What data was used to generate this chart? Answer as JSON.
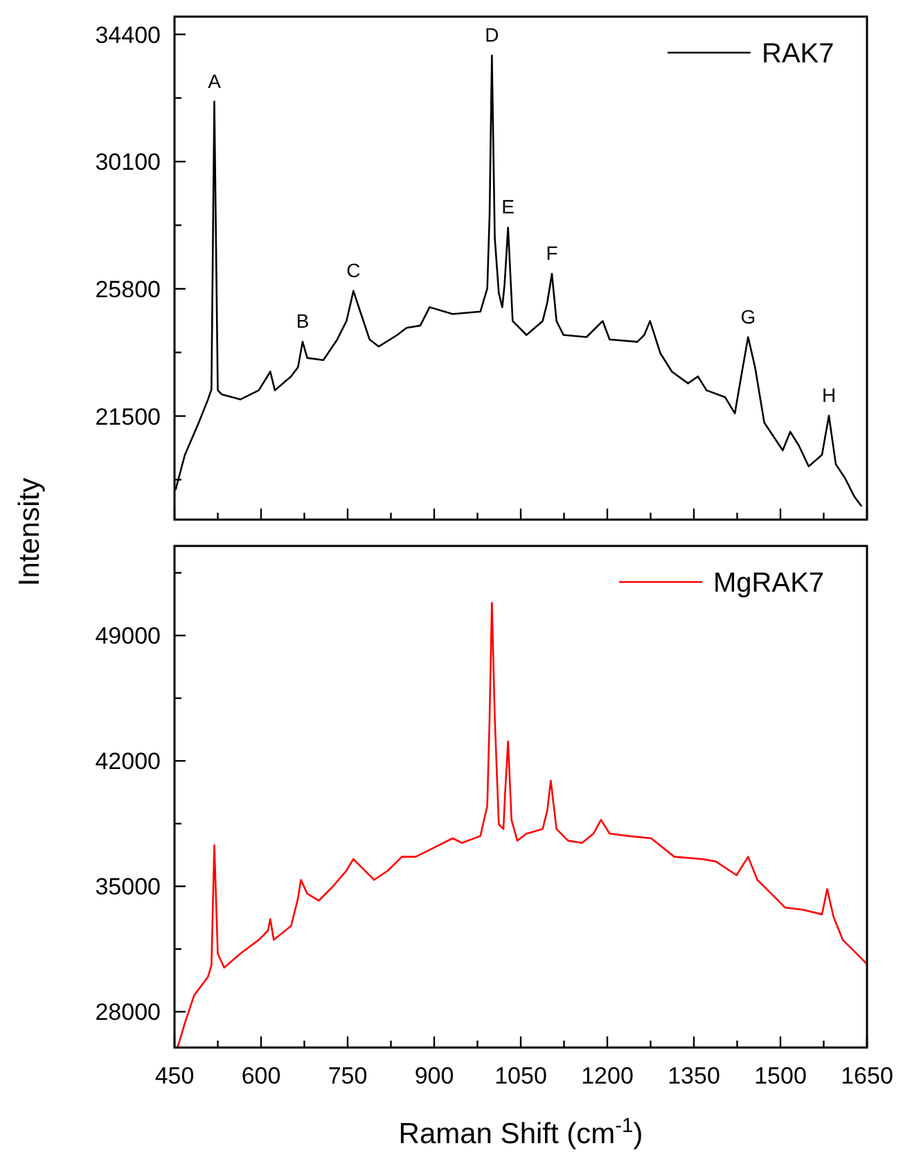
{
  "chart_data": [
    {
      "type": "line",
      "ylabel": "Intensity",
      "legend": "top right",
      "tick_labels": "y",
      "xlim": [
        450,
        1650
      ],
      "xticks": [
        450,
        {
          "value": 525,
          "label": null
        },
        600,
        {
          "value": 675,
          "label": null
        },
        750,
        {
          "value": 825,
          "label": null
        },
        900,
        {
          "value": 975,
          "label": null
        },
        1050,
        {
          "value": 1125,
          "label": null
        },
        1200,
        {
          "value": 1275,
          "label": null
        },
        1350,
        {
          "value": 1425,
          "label": null
        },
        1500,
        {
          "value": 1575,
          "label": null
        },
        1650
      ],
      "ylim": [
        18000,
        35000
      ],
      "yticks": [
        {
          "value": 19350,
          "label": null
        },
        21500,
        {
          "value": 23650,
          "label": null
        },
        25800,
        {
          "value": 27950,
          "label": null
        },
        30100,
        {
          "value": 32250,
          "label": null
        },
        34400
      ],
      "annotations": [
        {
          "text": "A",
          "x": 519,
          "y": 32130
        },
        {
          "text": "B",
          "x": 672,
          "y": 24010
        },
        {
          "text": "C",
          "x": 760,
          "y": 25730
        },
        {
          "text": "D",
          "x": 1000,
          "y": 33690
        },
        {
          "text": "E",
          "x": 1028,
          "y": 27870
        },
        {
          "text": "F",
          "x": 1104,
          "y": 26305
        },
        {
          "text": "G",
          "x": 1444,
          "y": 24170
        },
        {
          "text": "H",
          "x": 1584,
          "y": 21510
        }
      ],
      "series": [
        {
          "name": "RAK7",
          "color": "#000000",
          "x": [
            452,
            468,
            492,
            508,
            514,
            519,
            525,
            532,
            564,
            596,
            616,
            624,
            652,
            664,
            672,
            680,
            708,
            732,
            748,
            760,
            772,
            788,
            804,
            836,
            852,
            876,
            892,
            932,
            980,
            992,
            996,
            1000,
            1005,
            1012,
            1018,
            1022,
            1028,
            1036,
            1060,
            1088,
            1096,
            1104,
            1112,
            1124,
            1164,
            1192,
            1204,
            1252,
            1264,
            1274,
            1292,
            1312,
            1340,
            1357,
            1372,
            1404,
            1421,
            1432,
            1444,
            1456,
            1472,
            1504,
            1517,
            1532,
            1549,
            1572,
            1584,
            1596,
            1612,
            1628,
            1640
          ],
          "values": [
            19020,
            20190,
            21280,
            22060,
            22400,
            32130,
            22370,
            22230,
            22060,
            22370,
            23000,
            22370,
            22840,
            23150,
            24010,
            23465,
            23390,
            24090,
            24710,
            25730,
            25025,
            24090,
            23850,
            24240,
            24480,
            24560,
            25180,
            24950,
            25030,
            25810,
            28300,
            33690,
            27520,
            25650,
            25180,
            25960,
            27870,
            24710,
            24240,
            24710,
            25340,
            26305,
            24710,
            24240,
            24170,
            24710,
            24090,
            24010,
            24240,
            24710,
            23620,
            23000,
            22605,
            22840,
            22370,
            22140,
            21590,
            22840,
            24170,
            23150,
            21280,
            20340,
            20970,
            20500,
            19800,
            20190,
            21510,
            19870,
            19400,
            18780,
            18470
          ]
        }
      ]
    },
    {
      "type": "line",
      "xlabel": "Raman Shift (cm$^{-1}$)",
      "legend": "top right",
      "xlim": [
        450,
        1650
      ],
      "xticks": [
        450,
        {
          "value": 525,
          "label": null
        },
        600,
        {
          "value": 675,
          "label": null
        },
        750,
        {
          "value": 825,
          "label": null
        },
        900,
        {
          "value": 975,
          "label": null
        },
        1050,
        {
          "value": 1125,
          "label": null
        },
        1200,
        {
          "value": 1275,
          "label": null
        },
        1350,
        {
          "value": 1425,
          "label": null
        },
        1500,
        {
          "value": 1575,
          "label": null
        },
        1650
      ],
      "ylim": [
        26000,
        54000
      ],
      "yticks": [
        28000,
        {
          "value": 31500,
          "label": null
        },
        35000,
        {
          "value": 38500,
          "label": null
        },
        42000,
        {
          "value": 45500,
          "label": null
        },
        49000,
        {
          "value": 52500,
          "label": null
        }
      ],
      "series": [
        {
          "name": "MgRAK7",
          "color": "#ff0000",
          "x": [
            456,
            468,
            484,
            508,
            514,
            519,
            525,
            536,
            564,
            596,
            612,
            616,
            622,
            652,
            664,
            669,
            680,
            700,
            724,
            748,
            760,
            772,
            796,
            820,
            844,
            868,
            900,
            932,
            948,
            980,
            992,
            996,
            1000,
            1005,
            1012,
            1020,
            1023,
            1028,
            1034,
            1044,
            1060,
            1088,
            1096,
            1102,
            1112,
            1132,
            1156,
            1176,
            1189,
            1204,
            1236,
            1276,
            1316,
            1364,
            1388,
            1424,
            1444,
            1460,
            1476,
            1508,
            1540,
            1572,
            1581,
            1592,
            1608,
            1628,
            1648
          ],
          "values": [
            26080,
            27370,
            28916,
            29946,
            30590,
            37295,
            31240,
            30460,
            31240,
            32010,
            32525,
            33170,
            32010,
            32784,
            34330,
            35360,
            34590,
            34200,
            34975,
            35880,
            36520,
            36130,
            35360,
            35880,
            36650,
            36650,
            37165,
            37680,
            37420,
            37810,
            39480,
            44385,
            50830,
            44385,
            38455,
            38200,
            40260,
            43095,
            38710,
            37550,
            37940,
            38200,
            39230,
            40900,
            38200,
            37550,
            37420,
            37940,
            38710,
            37940,
            37810,
            37680,
            36650,
            36520,
            36390,
            35620,
            36650,
            35360,
            34850,
            33815,
            33685,
            33430,
            34850,
            33300,
            32010,
            31370,
            30720
          ]
        }
      ]
    }
  ]
}
